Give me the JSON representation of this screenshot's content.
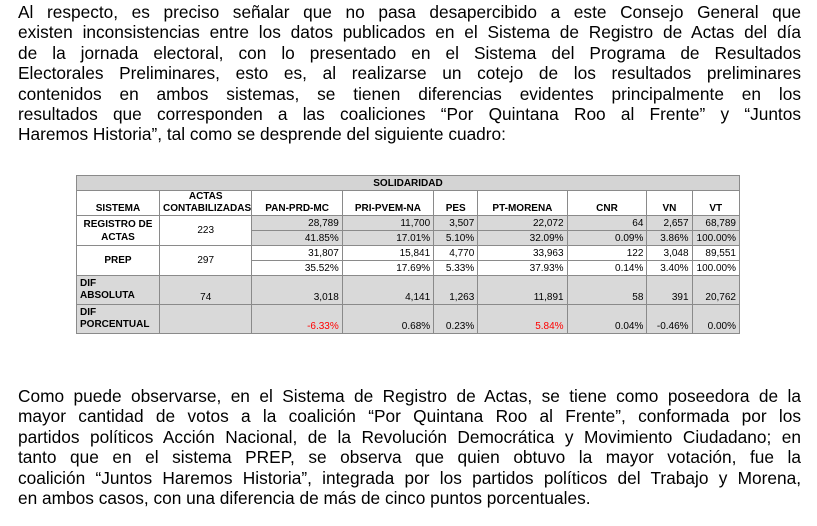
{
  "paragraph1": [
    "Al respecto, es preciso señalar que no pasa desapercibido a este Consejo General que",
    "existen inconsistencias entre los datos publicados en el Sistema de Registro de Actas del día",
    "de la jornada electoral, con lo presentado en el Sistema del Programa de Resultados",
    "Electorales Preliminares, esto es, al realizarse un cotejo de los resultados preliminares",
    "contenidos en ambos sistemas, se tienen diferencias evidentes principalmente en los",
    "resultados que corresponden a las coaliciones “Por Quintana Roo al Frente” y “Juntos",
    "Haremos Historia”, tal como se desprende del siguiente cuadro:"
  ],
  "table": {
    "title": "SOLIDARIDAD",
    "headers": {
      "sistema": "SISTEMA",
      "actas_line1": "ACTAS",
      "actas_line2": "CONTABILIZADAS",
      "pan": "PAN-PRD-MC",
      "pri": "PRI-PVEM-NA",
      "pes": "PES",
      "ptm": "PT-MORENA",
      "cnr": "CNR",
      "vn": "VN",
      "vt": "VT"
    },
    "registro": {
      "label_line1": "REGISTRO DE",
      "label_line2": "ACTAS",
      "actas": "223",
      "votes": [
        "28,789",
        "11,700",
        "3,507",
        "22,072",
        "64",
        "2,657",
        "68,789"
      ],
      "pct": [
        "41.85%",
        "17.01%",
        "5.10%",
        "32.09%",
        "0.09%",
        "3.86%",
        "100.00%"
      ]
    },
    "prep": {
      "label": "PREP",
      "actas": "297",
      "votes": [
        "31,807",
        "15,841",
        "4,770",
        "33,963",
        "122",
        "3,048",
        "89,551"
      ],
      "pct": [
        "35.52%",
        "17.69%",
        "5.33%",
        "37.93%",
        "0.14%",
        "3.40%",
        "100.00%"
      ]
    },
    "dif_abs": {
      "label_line1": "DIF",
      "label_line2": "ABSOLUTA",
      "actas": "74",
      "values": [
        "3,018",
        "4,141",
        "1,263",
        "11,891",
        "58",
        "391",
        "20,762"
      ]
    },
    "dif_pct": {
      "label_line1": "DIF",
      "label_line2": "PORCENTUAL",
      "values": [
        "-6.33%",
        "0.68%",
        "0.23%",
        "5.84%",
        "0.04%",
        "-0.46%",
        "0.00%"
      ]
    },
    "highlight_color": "#ff0000"
  },
  "paragraph2": [
    "Como puede observarse, en el Sistema de Registro de Actas, se tiene como poseedora de la",
    "mayor cantidad de votos a la coalición “Por Quintana Roo al Frente”, conformada por los",
    "partidos políticos Acción Nacional, de la Revolución Democrática y Movimiento Ciudadano; en",
    "tanto que en el sistema PREP, se observa que quien obtuvo la mayor votación, fue la",
    "coalición “Juntos Haremos Historia”, integrada por los partidos políticos del Trabajo y Morena,",
    "en ambos casos, con una diferencia de más de cinco puntos porcentuales."
  ]
}
